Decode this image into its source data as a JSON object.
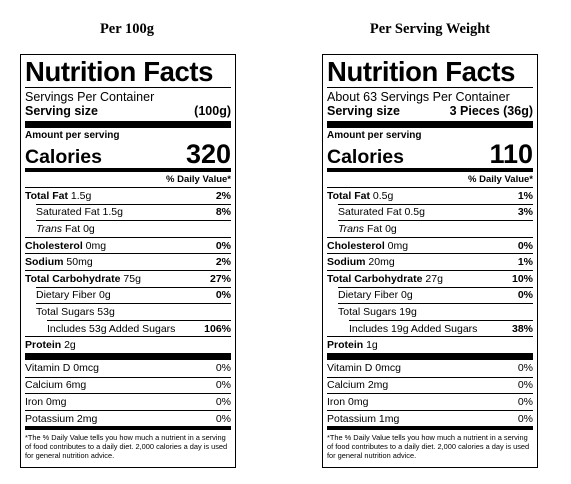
{
  "columns": [
    {
      "heading": "Per 100g",
      "title": "Nutrition Facts",
      "servings": "Servings Per Container",
      "serving_size_label": "Serving size",
      "serving_size_value": "(100g)",
      "amount_per_serving": "Amount per serving",
      "calories_label": "Calories",
      "calories_value": "320",
      "dv_header": "% Daily Value*",
      "nutrients": [
        {
          "bold": "Total Fat",
          "amount": " 1.5g",
          "dv": "2%"
        },
        {
          "label": "Saturated Fat 1.5g",
          "dv": "8%"
        },
        {
          "italic": "Trans",
          "rest": " Fat 0g",
          "dv": ""
        },
        {
          "bold": "Cholesterol",
          "amount": " 0mg",
          "dv": "0%"
        },
        {
          "bold": "Sodium",
          "amount": " 50mg",
          "dv": "2%"
        },
        {
          "bold": "Total Carbohydrate",
          "amount": " 75g",
          "dv": "27%"
        },
        {
          "label": "Dietary Fiber 0g",
          "dv": "0%"
        },
        {
          "label": "Total Sugars 53g",
          "dv": ""
        },
        {
          "label": "Includes 53g Added Sugars",
          "dv": "106%"
        },
        {
          "bold": "Protein",
          "amount": " 2g",
          "dv": ""
        }
      ],
      "vitamins": [
        {
          "label": "Vitamin D 0mcg",
          "dv": "0%"
        },
        {
          "label": "Calcium 6mg",
          "dv": "0%"
        },
        {
          "label": "Iron 0mg",
          "dv": "0%"
        },
        {
          "label": "Potassium 2mg",
          "dv": "0%"
        }
      ],
      "footnote": "*The % Daily Value tells you how much a nutrient in a serving of food contributes to a daily diet. 2,000 calories a day is used for general nutrition advice."
    },
    {
      "heading": "Per Serving Weight",
      "title": "Nutrition Facts",
      "servings": "About 63 Servings Per Container",
      "serving_size_label": "Serving size",
      "serving_size_value": "3 Pieces (36g)",
      "amount_per_serving": "Amount per serving",
      "calories_label": "Calories",
      "calories_value": "110",
      "dv_header": "% Daily Value*",
      "nutrients": [
        {
          "bold": "Total Fat",
          "amount": " 0.5g",
          "dv": "1%"
        },
        {
          "label": "Saturated Fat 0.5g",
          "dv": "3%"
        },
        {
          "italic": "Trans",
          "rest": " Fat 0g",
          "dv": ""
        },
        {
          "bold": "Cholesterol",
          "amount": " 0mg",
          "dv": "0%"
        },
        {
          "bold": "Sodium",
          "amount": " 20mg",
          "dv": "1%"
        },
        {
          "bold": "Total Carbohydrate",
          "amount": " 27g",
          "dv": "10%"
        },
        {
          "label": "Dietary Fiber 0g",
          "dv": "0%"
        },
        {
          "label": "Total Sugars 19g",
          "dv": ""
        },
        {
          "label": "Includes 19g Added Sugars",
          "dv": "38%"
        },
        {
          "bold": "Protein",
          "amount": " 1g",
          "dv": ""
        }
      ],
      "vitamins": [
        {
          "label": "Vitamin D 0mcg",
          "dv": "0%"
        },
        {
          "label": "Calcium 2mg",
          "dv": "0%"
        },
        {
          "label": "Iron 0mg",
          "dv": "0%"
        },
        {
          "label": "Potassium 1mg",
          "dv": "0%"
        }
      ],
      "footnote": "*The % Daily Value tells you how much a nutrient in a serving of food contributes to a daily diet. 2,000 calories a day is used for general nutrition advice."
    }
  ]
}
